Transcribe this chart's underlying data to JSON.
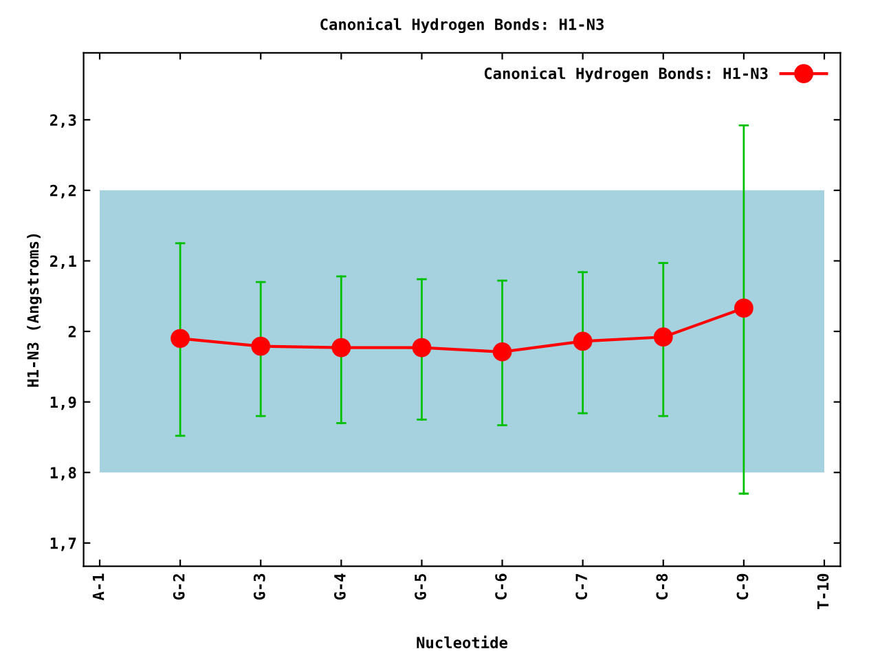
{
  "chart_data": {
    "type": "line",
    "title": "Canonical Hydrogen Bonds: H1-N3",
    "xlabel": "Nucleotide",
    "ylabel": "H1-N3 (Angstroms)",
    "categories": [
      "A-1",
      "G-2",
      "G-3",
      "G-4",
      "G-5",
      "C-6",
      "C-7",
      "C-8",
      "C-9",
      "T-10"
    ],
    "series": [
      {
        "name": "Canonical Hydrogen Bonds: H1-N3",
        "color": "#ff0000",
        "values": [
          null,
          1.99,
          1.979,
          1.977,
          1.977,
          1.971,
          1.986,
          1.992,
          2.033,
          null
        ],
        "errors": [
          null,
          [
            1.852,
            2.125
          ],
          [
            1.88,
            2.07
          ],
          [
            1.87,
            2.078
          ],
          [
            1.875,
            2.074
          ],
          [
            1.867,
            2.072
          ],
          [
            1.884,
            2.084
          ],
          [
            1.88,
            2.097
          ],
          [
            1.77,
            2.292
          ],
          null
        ]
      }
    ],
    "ylim": [
      1.667,
      2.395
    ],
    "yticks": [
      {
        "value": 1.7,
        "label": "1,7"
      },
      {
        "value": 1.8,
        "label": "1,8"
      },
      {
        "value": 1.9,
        "label": "1,9"
      },
      {
        "value": 2.0,
        "label": "2"
      },
      {
        "value": 2.1,
        "label": "2,1"
      },
      {
        "value": 2.2,
        "label": "2,2"
      },
      {
        "value": 2.3,
        "label": "2,3"
      }
    ],
    "bands": [
      {
        "axis": "y",
        "from": 1.8,
        "to": 2.2,
        "color": "#a6d2df"
      }
    ],
    "marker": "circle",
    "line_style": "solid",
    "legend": "top right",
    "grid": false
  }
}
